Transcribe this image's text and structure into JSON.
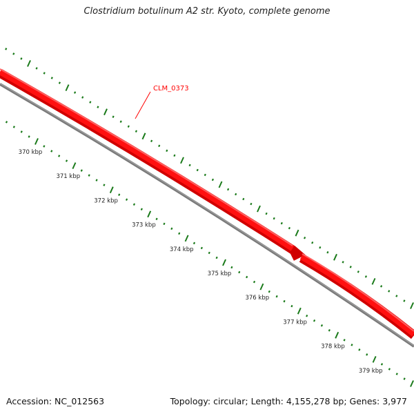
{
  "title": "Clostridium botulinum A2 str. Kyoto, complete genome",
  "feature": {
    "label": "CLM_0373",
    "color": "#ff0000"
  },
  "backbone_color": "#808080",
  "tick_color": "#1a7a1a",
  "scale_labels": [
    "370 kbp",
    "371 kbp",
    "372 kbp",
    "373 kbp",
    "374 kbp",
    "375 kbp",
    "376 kbp",
    "377 kbp",
    "378 kbp",
    "379 kbp"
  ],
  "footer": {
    "accession": "Accession: NC_012563",
    "summary": "Topology: circular; Length: 4,155,278 bp; Genes: 3,977"
  }
}
